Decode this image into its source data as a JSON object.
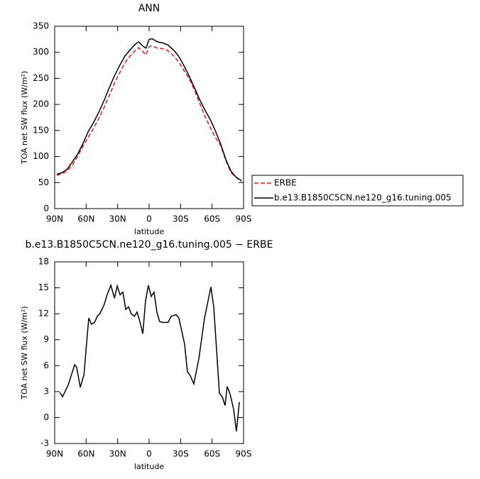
{
  "chart_data": [
    {
      "type": "line",
      "title": "ANN",
      "xlabel": "latitude",
      "ylabel": "TOA net SW flux (W/m²)",
      "x": [
        88,
        83,
        78,
        73,
        68,
        63,
        58,
        53,
        48,
        43,
        38,
        33,
        28,
        23,
        18,
        13,
        10,
        6,
        3,
        0,
        -3,
        -8,
        -13,
        -18,
        -23,
        -28,
        -33,
        -38,
        -43,
        -48,
        -53,
        -58,
        -63,
        -68,
        -73,
        -78,
        -83,
        -88
      ],
      "series": [
        {
          "name": "ERBE",
          "color": "#e31a1c",
          "dashed": true,
          "values": [
            64,
            67,
            72,
            84,
            101,
            120,
            137,
            154,
            173,
            194,
            217,
            241,
            261,
            280,
            293,
            304,
            309,
            302,
            295,
            311,
            312,
            308,
            307,
            303,
            294,
            282,
            266,
            250,
            229,
            203,
            178,
            157,
            137,
            122,
            93,
            69,
            60,
            52
          ]
        },
        {
          "name": "b.e13.B1850C5CN.ne120_g16.tuning.005",
          "color": "#000000",
          "dashed": false,
          "values": [
            66,
            69,
            76,
            90,
            105,
            125,
            148,
            165,
            185,
            207,
            232,
            255,
            275,
            293,
            305,
            316,
            320,
            312,
            308,
            325,
            326,
            320,
            318,
            314,
            305,
            293,
            275,
            255,
            233,
            210,
            190,
            172,
            150,
            125,
            95,
            72,
            60,
            54
          ]
        }
      ],
      "legend": "right",
      "xlim": [
        90,
        -90
      ],
      "xticks": [
        {
          "value": 90,
          "label": "90N"
        },
        {
          "value": 60,
          "label": "60N"
        },
        {
          "value": 30,
          "label": "30N"
        },
        0,
        {
          "value": -30,
          "label": "30S"
        },
        {
          "value": -60,
          "label": "60S"
        },
        {
          "value": -90,
          "label": "90S"
        }
      ],
      "ylim": [
        0,
        350
      ],
      "yticks": [
        0,
        50,
        100,
        150,
        200,
        250,
        300,
        350
      ]
    },
    {
      "type": "line",
      "title": "b.e13.B1850C5CN.ne120_g16.tuning.005 − ERBE",
      "xlabel": "latitude",
      "ylabel": "TOA net SW flux (W/m²)",
      "x": [
        85,
        82.5,
        77,
        71,
        69,
        65.6,
        62,
        60,
        57.5,
        55,
        52,
        49,
        47,
        43,
        40,
        36.5,
        33,
        30.4,
        27.7,
        25,
        22.3,
        19.6,
        17,
        14,
        11.5,
        9,
        6,
        3.4,
        0.7,
        -2,
        -4.7,
        -7.4,
        -10,
        -13,
        -18,
        -21,
        -25.7,
        -28.4,
        -33.8,
        -36.5,
        -39,
        -42.6,
        -47.4,
        -52.8,
        -58.9,
        -61.6,
        -67,
        -69.7,
        -72.4,
        -74.4,
        -77,
        -80.5,
        -83.2,
        -86
      ],
      "values": [
        2.9,
        2.4,
        3.8,
        6.1,
        5.8,
        3.5,
        5,
        8,
        11.5,
        10.8,
        11,
        11.8,
        12,
        13,
        14.2,
        15.3,
        13.8,
        15.2,
        14.2,
        14.5,
        12.5,
        12.8,
        12,
        11.7,
        12.2,
        11.2,
        9.7,
        13.5,
        15.3,
        14,
        14.5,
        12.2,
        11.1,
        11,
        11,
        11.7,
        11.9,
        11.5,
        8.5,
        5.3,
        4.9,
        3.9,
        6.8,
        11.5,
        15.1,
        12.8,
        2.8,
        2.4,
        1.4,
        3.6,
        2.8,
        1,
        -1.6,
        1.8
      ],
      "color": "#000000",
      "xlim": [
        90,
        -90
      ],
      "xticks": [
        {
          "value": 90,
          "label": "90N"
        },
        {
          "value": 60,
          "label": "60N"
        },
        {
          "value": 30,
          "label": "30N"
        },
        0,
        {
          "value": -30,
          "label": "30S"
        },
        {
          "value": -60,
          "label": "60S"
        },
        {
          "value": -90,
          "label": "90S"
        }
      ],
      "ylim": [
        -3,
        18
      ],
      "yticks": [
        -3,
        0,
        3,
        6,
        9,
        12,
        15,
        18
      ]
    }
  ]
}
